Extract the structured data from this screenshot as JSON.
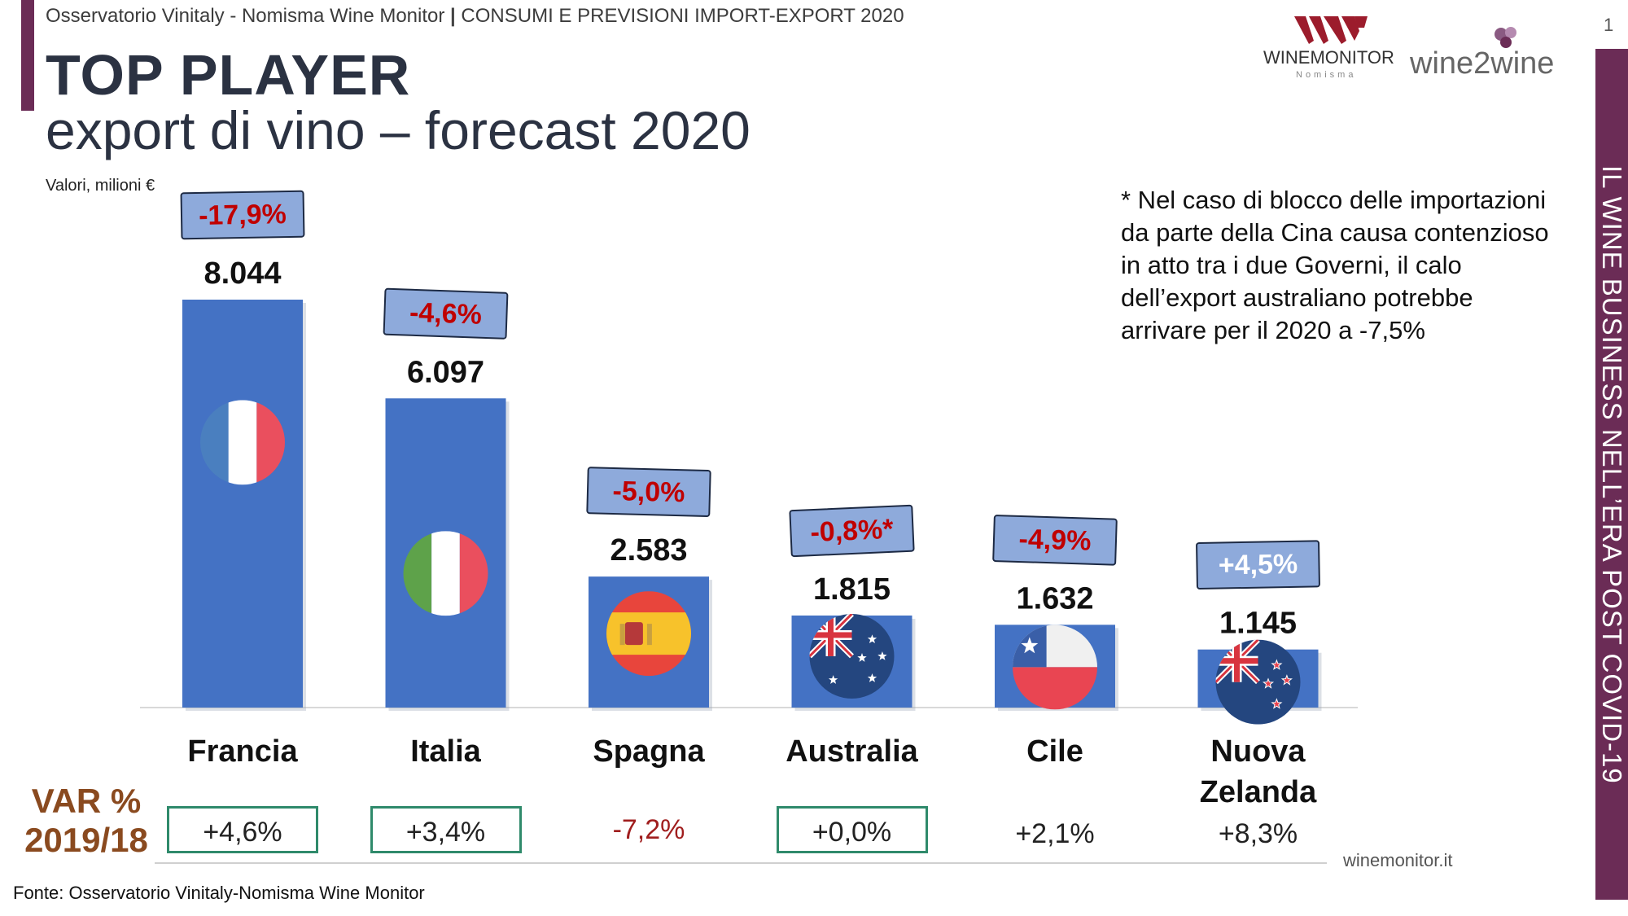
{
  "header": {
    "source_line": "Osservatorio Vinitaly - Nomisma Wine Monitor",
    "separator": "|",
    "topic_line": "CONSUMI E PREVISIONI IMPORT-EXPORT 2020",
    "page_number": "1"
  },
  "title": {
    "main": "TOP PLAYER",
    "sub": "export di vino – forecast 2020"
  },
  "units_label": "Valori, milioni €",
  "logos": {
    "winemonitor_top": "WINEMONITOR",
    "winemonitor_sub": "Nomisma",
    "wine2wine": "wine2wine"
  },
  "side_banner": "IL WINE BUSINESS NELL’ERA POST COVID-19",
  "footnote": "* Nel caso di blocco delle importazioni da parte della Cina causa contenzioso in atto tra i due Governi, il calo dell’export australiano potrebbe arrivare per il 2020 a -7,5%",
  "var_label": {
    "line1": "VAR %",
    "line2": "2019/18"
  },
  "source": "Fonte: Osservatorio Vinitaly-Nomisma Wine Monitor",
  "site": "winemonitor.it",
  "colors": {
    "bar": "#4472c4",
    "accent": "#6b2c56",
    "forecast_box": "#8eaadb",
    "negative_text": "#c00000",
    "positive_text": "#ffffff",
    "var_box_border": "#2f8a6b",
    "var_label": "#8a4a1f"
  },
  "chart_data": {
    "type": "bar",
    "categories": [
      "Francia",
      "Italia",
      "Spagna",
      "Australia",
      "Cile",
      "Nuova Zelanda"
    ],
    "values": [
      8044,
      6097,
      2583,
      1815,
      1632,
      1145
    ],
    "value_labels": [
      "8.044",
      "6.097",
      "2.583",
      "1.815",
      "1.632",
      "1.145"
    ],
    "forecast_change_labels": [
      "-17,9%",
      "-4,6%",
      "-5,0%",
      "-0,8%*",
      "-4,9%",
      "+4,5%"
    ],
    "var_2019_18_labels": [
      "+4,6%",
      "+3,4%",
      "-7,2%",
      "+0,0%",
      "+2,1%",
      "+8,3%"
    ],
    "var_boxed": [
      true,
      true,
      false,
      true,
      false,
      false
    ],
    "flags": [
      "france-flag-icon",
      "italy-flag-icon",
      "spain-flag-icon",
      "australia-flag-icon",
      "chile-flag-icon",
      "new-zealand-flag-icon"
    ],
    "ylabel": "Valori, milioni €",
    "ylim": [
      0,
      8044
    ],
    "grid": false,
    "legend": "none"
  }
}
